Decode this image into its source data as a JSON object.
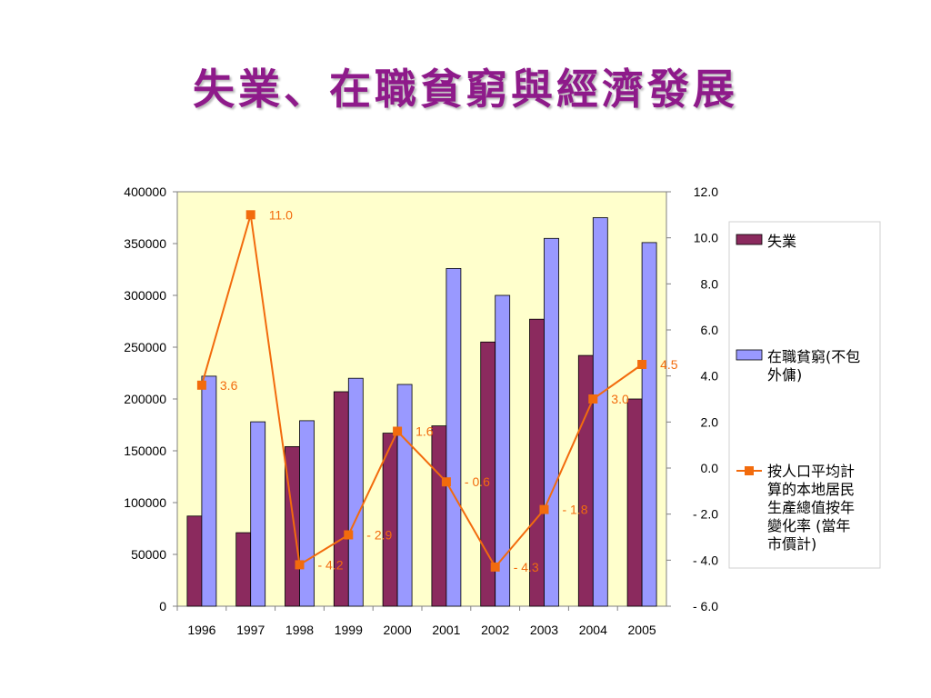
{
  "slide": {
    "title": "失業、在職貧窮與經濟發展"
  },
  "legend": {
    "items": [
      {
        "lines": [
          "失業"
        ],
        "color": "#8b2a5e"
      },
      {
        "lines": [
          "在職貧窮(不包",
          "外傭)"
        ],
        "color": "#9999ff"
      },
      {
        "lines": [
          "按人口平均計",
          "算的本地居民",
          "生產總值按年",
          "變化率 (當年",
          "市價計)"
        ],
        "color": "#f26b0d"
      }
    ]
  },
  "chart_data": {
    "type": "bar",
    "categories": [
      "1996",
      "1997",
      "1998",
      "1999",
      "2000",
      "2001",
      "2002",
      "2003",
      "2004",
      "2005"
    ],
    "series": [
      {
        "name": "失業",
        "type": "bar",
        "axis": "left",
        "color": "#8b2a5e",
        "values": [
          87000,
          71000,
          154000,
          207000,
          167000,
          174000,
          255000,
          277000,
          242000,
          200000
        ]
      },
      {
        "name": "在職貧窮(不包外傭)",
        "type": "bar",
        "axis": "left",
        "color": "#9999ff",
        "values": [
          222000,
          178000,
          179000,
          220000,
          214000,
          326000,
          300000,
          355000,
          375000,
          351000
        ]
      },
      {
        "name": "按人口平均計算的本地居民生產總值按年變化率 (當年市價計)",
        "type": "line",
        "axis": "right",
        "color": "#f26b0d",
        "values": [
          3.6,
          11.0,
          -4.2,
          -2.9,
          1.6,
          -0.6,
          -4.3,
          -1.8,
          3.0,
          4.5
        ],
        "data_labels": [
          "3.6",
          "11.0",
          "- 4.2",
          "- 2.9",
          "1.6",
          "- 0.6",
          "- 4.3",
          "- 1.8",
          "3.0",
          "4.5"
        ]
      }
    ],
    "y_left": {
      "range": [
        0,
        400000
      ],
      "ticks": [
        0,
        50000,
        100000,
        150000,
        200000,
        250000,
        300000,
        350000,
        400000
      ],
      "tick_labels": [
        "0",
        "50000",
        "100000",
        "150000",
        "200000",
        "250000",
        "300000",
        "350000",
        "400000"
      ]
    },
    "y_right": {
      "range": [
        -6,
        12
      ],
      "ticks": [
        -6,
        -4,
        -2,
        0,
        2,
        4,
        6,
        8,
        10,
        12
      ],
      "tick_labels": [
        "-  6.0",
        "-  4.0",
        "-  2.0",
        "0.0",
        "2.0",
        "4.0",
        "6.0",
        "8.0",
        "10.0",
        "12.0"
      ]
    },
    "plot_background": "#ffffcc",
    "grid": false,
    "legend_position": "right"
  }
}
